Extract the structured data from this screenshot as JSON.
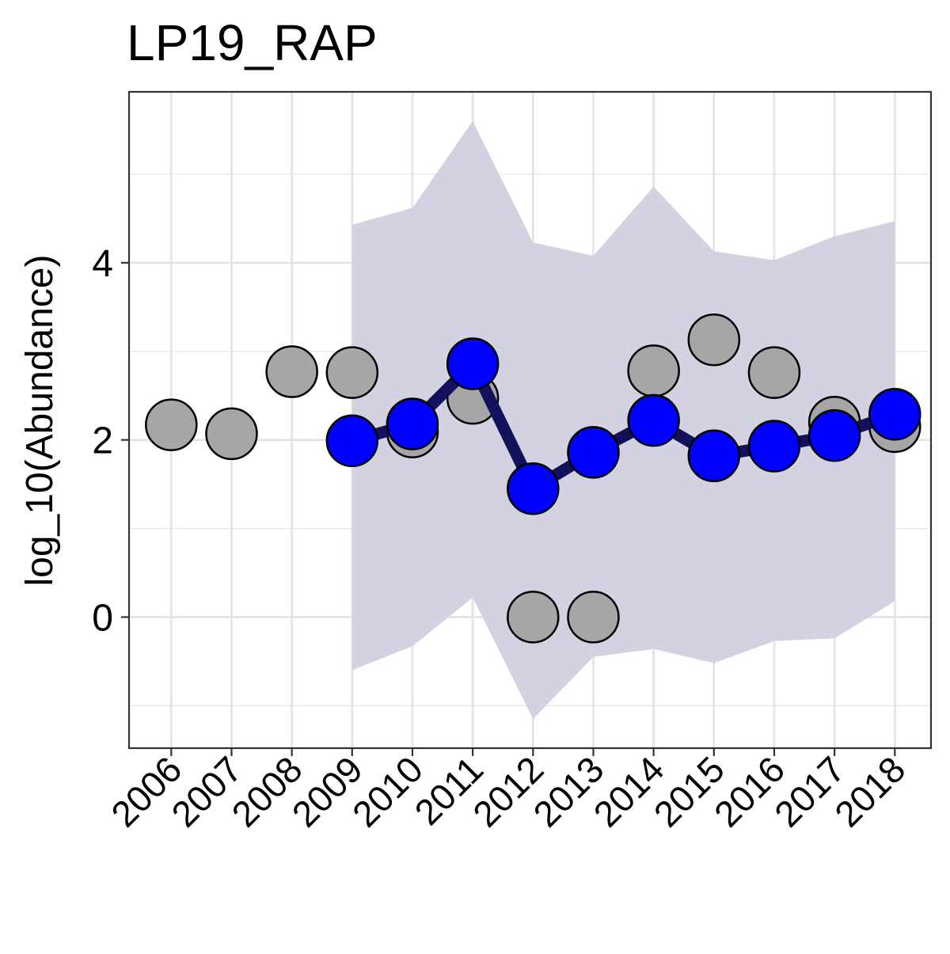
{
  "chart_data": {
    "type": "line",
    "title": "LP19_RAP",
    "ylabel": "log_10(Abundance)",
    "xlabel": "",
    "x": [
      2006,
      2007,
      2008,
      2009,
      2010,
      2011,
      2012,
      2013,
      2014,
      2015,
      2016,
      2017,
      2018
    ],
    "x_tick_labels": [
      "2006",
      "2007",
      "2008",
      "2009",
      "2010",
      "2011",
      "2012",
      "2013",
      "2014",
      "2015",
      "2016",
      "2017",
      "2018"
    ],
    "y_ticks": [
      0,
      2,
      4
    ],
    "y_tick_labels": [
      "0",
      "2",
      "4"
    ],
    "xlim": [
      2005.3,
      2018.6
    ],
    "ylim": [
      -1.48,
      5.93
    ],
    "grid": true,
    "observed": {
      "x": [
        2006,
        2007,
        2008,
        2009,
        2010,
        2011,
        2012,
        2013,
        2014,
        2015,
        2016,
        2017,
        2018
      ],
      "y": [
        2.17,
        2.07,
        2.77,
        2.76,
        2.09,
        2.47,
        0.0,
        0.0,
        2.78,
        3.13,
        2.76,
        2.2,
        2.15
      ]
    },
    "fitted": {
      "x": [
        2009,
        2010,
        2011,
        2012,
        2013,
        2014,
        2015,
        2016,
        2017,
        2018
      ],
      "y": [
        1.99,
        2.18,
        2.86,
        1.45,
        1.86,
        2.22,
        1.82,
        1.93,
        2.05,
        2.29
      ]
    },
    "interval": {
      "x": [
        2009,
        2010,
        2011,
        2012,
        2013,
        2014,
        2015,
        2016,
        2017,
        2018
      ],
      "lower": [
        -0.6,
        -0.33,
        0.22,
        -1.15,
        -0.45,
        -0.36,
        -0.52,
        -0.27,
        -0.24,
        0.18
      ],
      "upper": [
        4.43,
        4.62,
        5.6,
        4.23,
        4.08,
        4.86,
        4.13,
        4.03,
        4.3,
        4.47
      ]
    },
    "colors": {
      "observed_fill": "#a6a6a6",
      "fitted_fill": "#0000ff",
      "fitted_line": "#13115c",
      "interval_fill": "#d0d0e2",
      "grid": "#e3e3e3",
      "marker_stroke": "#000000"
    }
  }
}
